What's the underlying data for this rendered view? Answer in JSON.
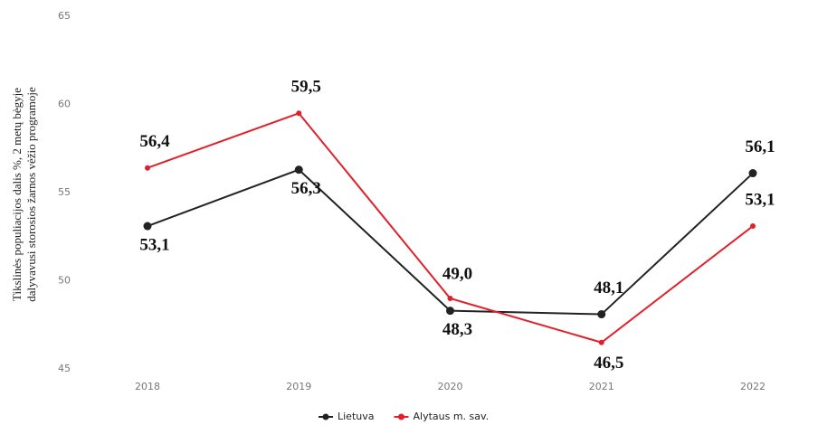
{
  "chart_data": {
    "type": "line",
    "y_label": [
      "Tikslinės populiacijos dalis %, 2 metų bėgyje",
      "dalyvavusi storosios žarnos vėžio programoje"
    ],
    "categories": [
      "2018",
      "2019",
      "2020",
      "2021",
      "2022"
    ],
    "series": [
      {
        "name": "Lietuva",
        "color": "#222222",
        "values": [
          53.1,
          56.3,
          48.3,
          48.1,
          56.1
        ],
        "value_labels": [
          "53,1",
          "56,3",
          "48,3",
          "48,1",
          "56,1"
        ]
      },
      {
        "name": "Alytaus m. sav.",
        "color": "#e0202a",
        "values": [
          56.4,
          59.5,
          49.0,
          46.5,
          53.1
        ],
        "value_labels": [
          "56,4",
          "59,5",
          "49,0",
          "46,5",
          "53,1"
        ]
      }
    ],
    "ylim": [
      45,
      65
    ],
    "yticks": [
      45,
      50,
      55,
      60,
      65
    ],
    "grid": false
  }
}
